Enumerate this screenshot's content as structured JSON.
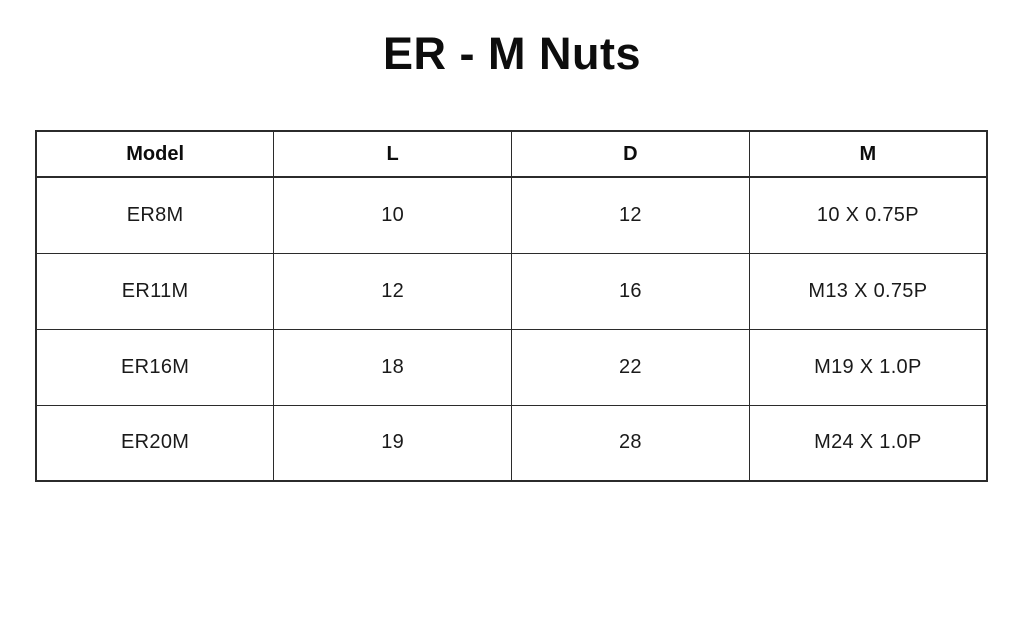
{
  "page": {
    "title": "ER - M Nuts"
  },
  "table": {
    "headers": [
      "Model",
      "L",
      "D",
      "M"
    ],
    "rows": [
      [
        "ER8M",
        "10",
        "12",
        "10 X 0.75P"
      ],
      [
        "ER11M",
        "12",
        "16",
        "M13 X 0.75P"
      ],
      [
        "ER16M",
        "18",
        "22",
        "M19 X 1.0P"
      ],
      [
        "ER20M",
        "19",
        "28",
        "M24 X 1.0P"
      ]
    ]
  },
  "colors": {
    "background": "#ffffff",
    "text": "#1a1a1a",
    "border": "#2b2b2b"
  }
}
